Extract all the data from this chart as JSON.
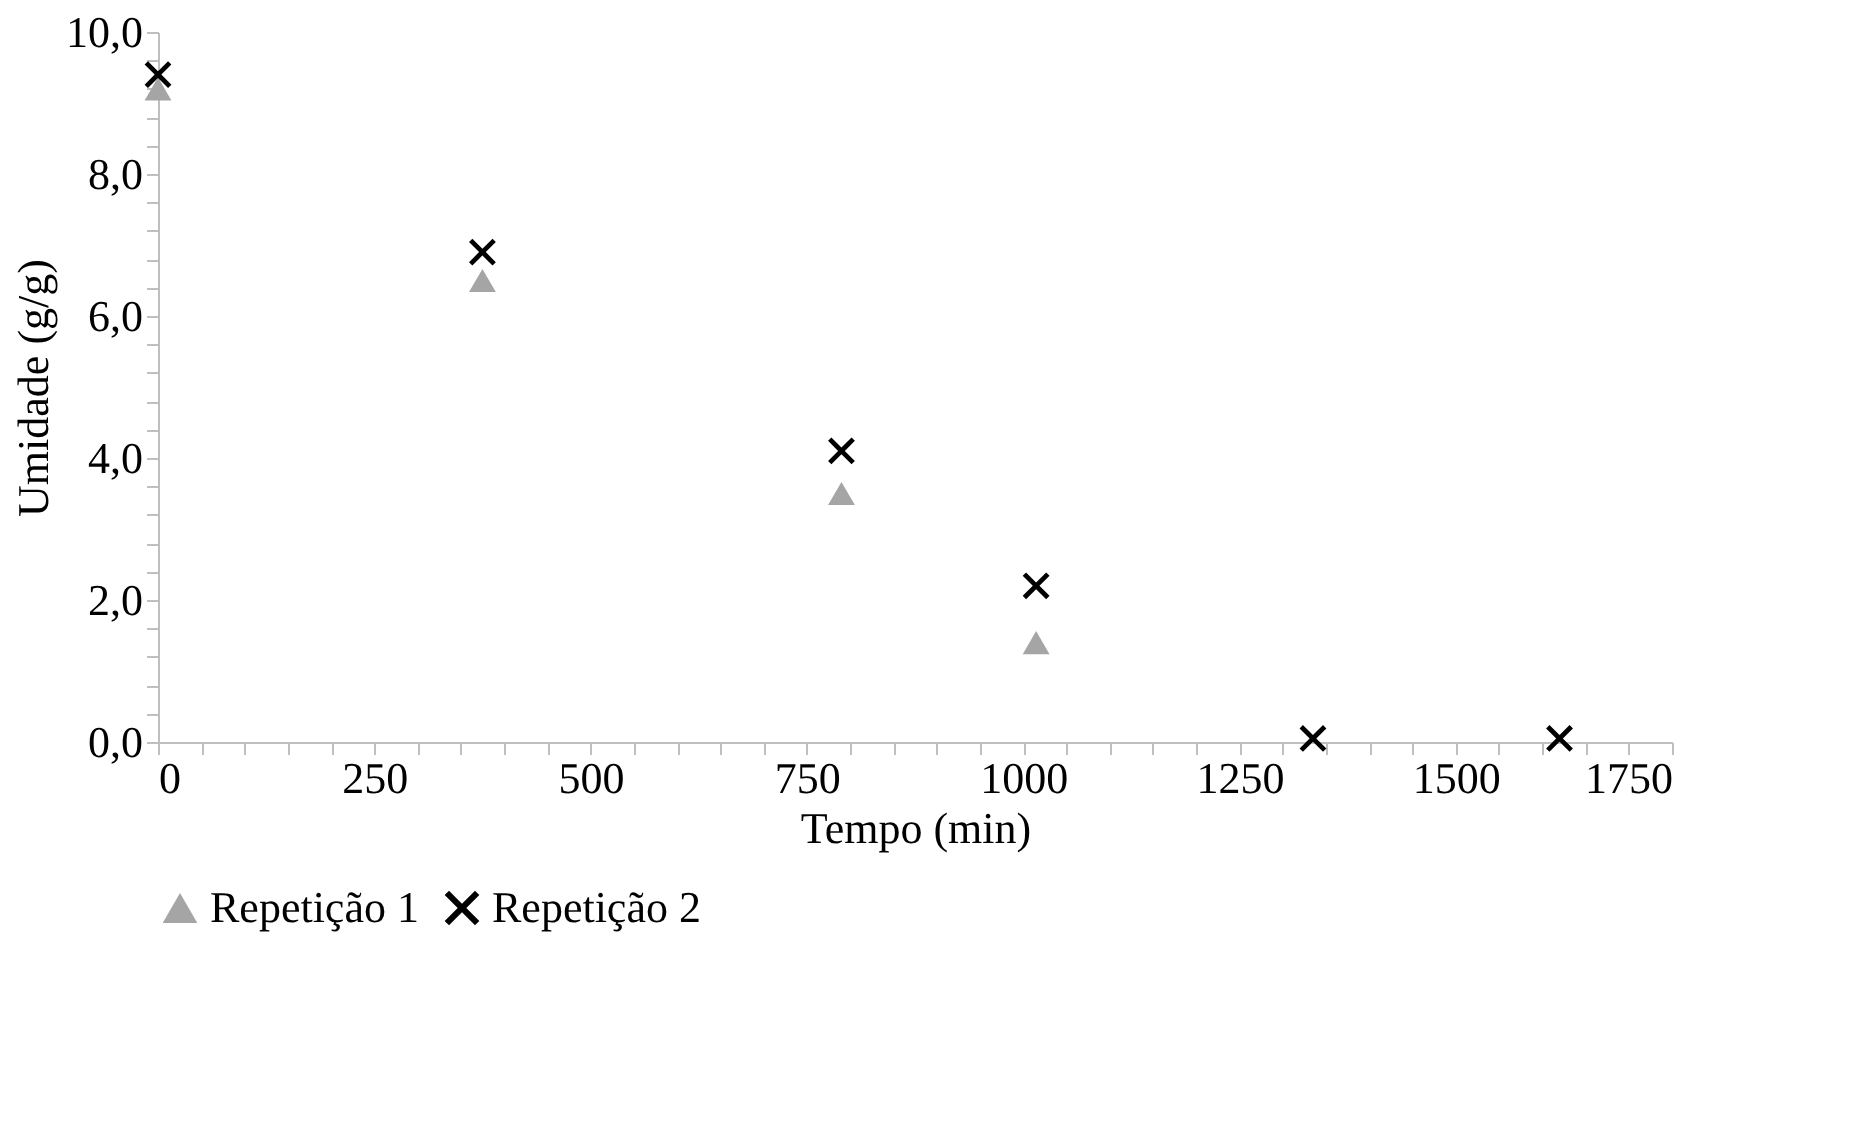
{
  "chart_data": {
    "type": "scatter",
    "xlabel": "Tempo (min)",
    "ylabel": "Umidade (g/g)",
    "x": [
      0,
      375,
      790,
      1015,
      1335,
      1620
    ],
    "series": [
      {
        "name": "Repetição 1",
        "color": "#a5a5a5",
        "marker": "triangle",
        "values": [
          9.2,
          6.5,
          3.5,
          1.4,
          null,
          null
        ]
      },
      {
        "name": "Repetição 2",
        "color": "#000000",
        "marker": "cross",
        "values": [
          9.4,
          6.9,
          4.1,
          2.2,
          0.05,
          0.05
        ]
      }
    ],
    "xlim": [
      0,
      1750
    ],
    "xticks": [
      0,
      {
        "value": 50,
        "label": null
      },
      {
        "value": 100,
        "label": null
      },
      {
        "value": 150,
        "label": null
      },
      {
        "value": 200,
        "label": null
      },
      250,
      {
        "value": 300,
        "label": null
      },
      {
        "value": 350,
        "label": null
      },
      {
        "value": 400,
        "label": null
      },
      {
        "value": 450,
        "label": null
      },
      500,
      {
        "value": 550,
        "label": null
      },
      {
        "value": 600,
        "label": null
      },
      {
        "value": 650,
        "label": null
      },
      {
        "value": 700,
        "label": null
      },
      750,
      {
        "value": 800,
        "label": null
      },
      {
        "value": 850,
        "label": null
      },
      {
        "value": 900,
        "label": null
      },
      {
        "value": 950,
        "label": null
      },
      1000,
      {
        "value": 1050,
        "label": null
      },
      {
        "value": 1100,
        "label": null
      },
      {
        "value": 1150,
        "label": null
      },
      {
        "value": 1200,
        "label": null
      },
      1250,
      {
        "value": 1300,
        "label": null
      },
      {
        "value": 1350,
        "label": null
      },
      {
        "value": 1400,
        "label": null
      },
      {
        "value": 1450,
        "label": null
      },
      1500,
      {
        "value": 1550,
        "label": null
      },
      {
        "value": 1600,
        "label": null
      },
      {
        "value": 1650,
        "label": null
      },
      {
        "value": 1700,
        "label": null
      },
      1750
    ],
    "ylim": [
      0,
      10
    ],
    "yticks": [
      {
        "value": 0,
        "label": "0,0"
      },
      {
        "value": 0.4,
        "label": null
      },
      {
        "value": 0.8,
        "label": null
      },
      {
        "value": 1.2,
        "label": null
      },
      {
        "value": 1.6,
        "label": null
      },
      {
        "value": 2,
        "label": "2,0"
      },
      {
        "value": 2.4,
        "label": null
      },
      {
        "value": 2.8,
        "label": null
      },
      {
        "value": 3.2,
        "label": null
      },
      {
        "value": 3.6,
        "label": null
      },
      {
        "value": 4,
        "label": "4,0"
      },
      {
        "value": 4.4,
        "label": null
      },
      {
        "value": 4.8,
        "label": null
      },
      {
        "value": 5.2,
        "label": null
      },
      {
        "value": 5.6,
        "label": null
      },
      {
        "value": 6,
        "label": "6,0"
      },
      {
        "value": 6.4,
        "label": null
      },
      {
        "value": 6.8,
        "label": null
      },
      {
        "value": 7.2,
        "label": null
      },
      {
        "value": 7.6,
        "label": null
      },
      {
        "value": 8,
        "label": "8,0"
      },
      {
        "value": 8.4,
        "label": null
      },
      {
        "value": 8.8,
        "label": null
      },
      {
        "value": 9.2,
        "label": null
      },
      {
        "value": 9.6,
        "label": null
      },
      {
        "value": 10,
        "label": "10,0"
      }
    ],
    "grid": false,
    "legend": "bottom"
  }
}
